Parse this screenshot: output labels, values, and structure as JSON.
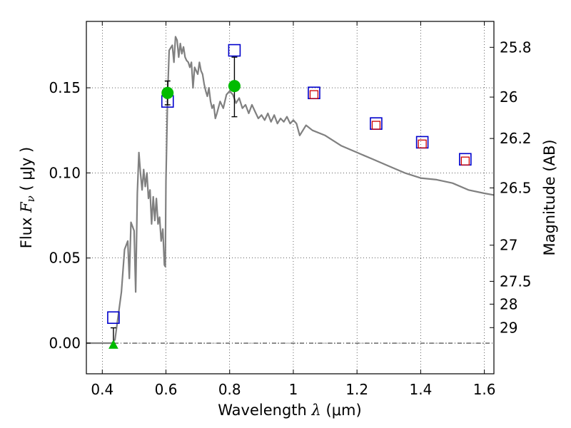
{
  "chart_data": {
    "type": "scatter",
    "xlabel": "Wavelength  λ (μm)",
    "ylabel": "Flux  F_ν  ( μJy )",
    "y2label": "Magnitude (AB)",
    "xlim": [
      0.35,
      1.63
    ],
    "ylim": [
      -0.018,
      0.189
    ],
    "x_ticks": [
      0.4,
      0.6,
      0.8,
      1.0,
      1.2,
      1.4,
      1.6
    ],
    "x_tick_labels": [
      "0.4",
      "0.6",
      "0.8",
      "1",
      "1.2",
      "1.4",
      "1.6"
    ],
    "y_ticks": [
      0.0,
      0.05,
      0.1,
      0.15
    ],
    "y_tick_labels": [
      "0.00",
      "0.05",
      "0.10",
      "0.15"
    ],
    "mag_ticks": [
      25.8,
      26,
      26.2,
      26.5,
      27,
      27.5,
      28,
      29
    ],
    "mag_tick_labels": [
      "25.8",
      "26",
      "26.2",
      "26.5",
      "27",
      "27.5",
      "28",
      "29"
    ],
    "grid": true,
    "colors": {
      "model": "#808080",
      "open_square": "#0000cc",
      "inner_square": "#cc0000",
      "detection": "#00bb00",
      "upper_limit": "#00bb00",
      "errorbar": "#000000"
    },
    "series": [
      {
        "type": "line",
        "x": [
          0.35,
          0.43,
          0.44,
          0.46,
          0.47,
          0.48,
          0.485,
          0.49,
          0.5,
          0.505,
          0.51,
          0.515,
          0.52,
          0.525,
          0.53,
          0.535,
          0.54,
          0.545,
          0.55,
          0.555,
          0.56,
          0.565,
          0.57,
          0.575,
          0.58,
          0.585,
          0.59,
          0.595,
          0.598,
          0.6,
          0.605,
          0.61,
          0.62,
          0.625,
          0.63,
          0.635,
          0.64,
          0.645,
          0.65,
          0.655,
          0.66,
          0.665,
          0.67,
          0.675,
          0.68,
          0.685,
          0.69,
          0.7,
          0.705,
          0.71,
          0.715,
          0.72,
          0.725,
          0.73,
          0.735,
          0.74,
          0.745,
          0.75,
          0.755,
          0.76,
          0.77,
          0.78,
          0.79,
          0.8,
          0.81,
          0.82,
          0.83,
          0.84,
          0.85,
          0.86,
          0.87,
          0.88,
          0.89,
          0.9,
          0.91,
          0.92,
          0.93,
          0.94,
          0.95,
          0.96,
          0.97,
          0.98,
          0.99,
          1.0,
          1.01,
          1.02,
          1.04,
          1.06,
          1.1,
          1.15,
          1.2,
          1.25,
          1.3,
          1.35,
          1.4,
          1.45,
          1.5,
          1.55,
          1.6,
          1.63
        ],
        "y": [
          0.0,
          0.0,
          0.002,
          0.03,
          0.055,
          0.06,
          0.038,
          0.071,
          0.066,
          0.03,
          0.088,
          0.112,
          0.1,
          0.09,
          0.102,
          0.092,
          0.1,
          0.085,
          0.09,
          0.07,
          0.086,
          0.072,
          0.085,
          0.07,
          0.074,
          0.06,
          0.067,
          0.046,
          0.045,
          0.095,
          0.145,
          0.172,
          0.175,
          0.165,
          0.18,
          0.178,
          0.168,
          0.176,
          0.17,
          0.174,
          0.168,
          0.166,
          0.165,
          0.162,
          0.165,
          0.15,
          0.162,
          0.158,
          0.165,
          0.16,
          0.158,
          0.152,
          0.148,
          0.145,
          0.15,
          0.142,
          0.138,
          0.14,
          0.132,
          0.135,
          0.142,
          0.138,
          0.146,
          0.148,
          0.146,
          0.141,
          0.144,
          0.138,
          0.14,
          0.135,
          0.14,
          0.136,
          0.132,
          0.134,
          0.131,
          0.135,
          0.13,
          0.134,
          0.129,
          0.132,
          0.13,
          0.133,
          0.129,
          0.131,
          0.129,
          0.122,
          0.128,
          0.125,
          0.122,
          0.116,
          0.112,
          0.108,
          0.104,
          0.1,
          0.097,
          0.096,
          0.094,
          0.09,
          0.088,
          0.087
        ]
      },
      {
        "type": "open_square",
        "x": [
          0.435,
          0.605,
          0.815,
          1.065,
          1.26,
          1.405,
          1.54
        ],
        "y": [
          0.015,
          0.142,
          0.172,
          0.147,
          0.129,
          0.118,
          0.108
        ]
      },
      {
        "type": "inner_square",
        "x": [
          1.065,
          1.26,
          1.405,
          1.54
        ],
        "y": [
          0.146,
          0.128,
          0.117,
          0.107
        ]
      },
      {
        "type": "detection",
        "x": [
          0.605,
          0.815
        ],
        "y": [
          0.147,
          0.151
        ],
        "yerr_low": [
          0.14,
          0.133
        ],
        "yerr_high": [
          0.154,
          0.168
        ]
      },
      {
        "type": "upper_limit",
        "x": [
          0.435
        ],
        "y": [
          -0.001
        ],
        "yerr_low": [
          -0.001
        ],
        "yerr_high": [
          0.009
        ]
      }
    ]
  }
}
